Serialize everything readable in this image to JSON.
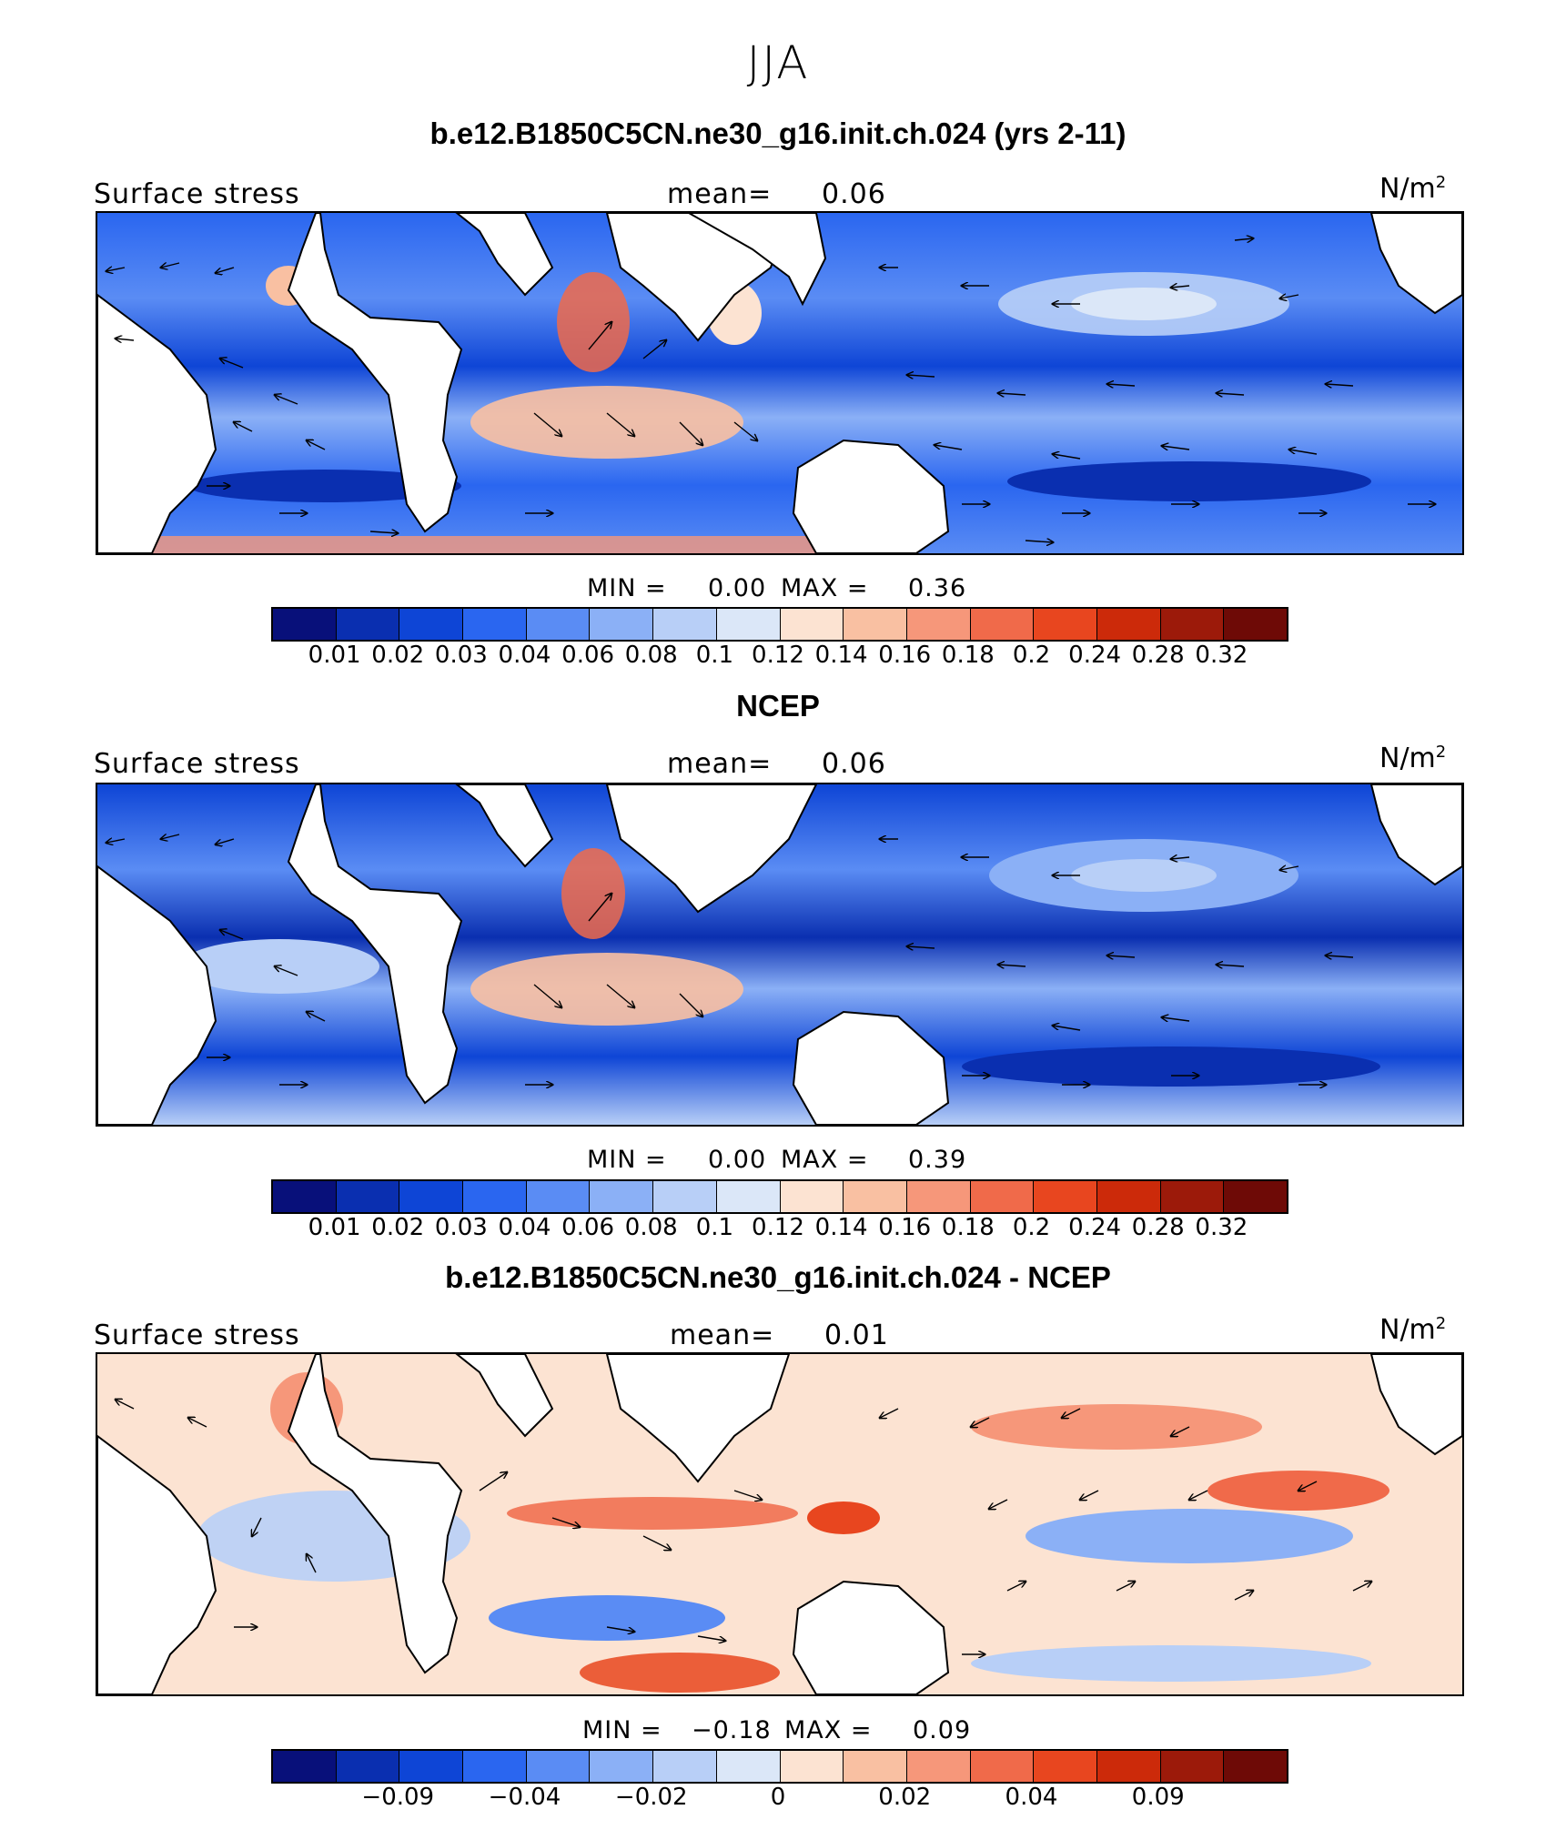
{
  "figure": {
    "season": "JJA",
    "palette": [
      "#08107a",
      "#0a2fb0",
      "#0e45d6",
      "#2a66f0",
      "#5a8cf4",
      "#8bb0f6",
      "#b8cff7",
      "#dbe7f8",
      "#fce3d2",
      "#f9c0a2",
      "#f6977a",
      "#f06a4a",
      "#e8461f",
      "#cc2a0a",
      "#9c1a0a",
      "#6e0a06"
    ]
  },
  "panels": [
    {
      "title": "b.e12.B1850C5CN.ne30_g16.init.ch.024 (yrs 2-11)",
      "variable": "Surface stress",
      "mean_label": "mean=",
      "mean_value": "0.06",
      "units": "N/m",
      "units_exp": "2",
      "min_label": "MIN =",
      "min_value": "0.00",
      "max_label": "MAX =",
      "max_value": "0.36",
      "colorbar_ticks": [
        "0.01",
        "0.02",
        "0.03",
        "0.04",
        "0.06",
        "0.08",
        "0.1",
        "0.12",
        "0.14",
        "0.16",
        "0.18",
        "0.2",
        "0.24",
        "0.28",
        "0.32"
      ]
    },
    {
      "title": "NCEP",
      "variable": "Surface stress",
      "mean_label": "mean=",
      "mean_value": "0.06",
      "units": "N/m",
      "units_exp": "2",
      "min_label": "MIN =",
      "min_value": "0.00",
      "max_label": "MAX =",
      "max_value": "0.39",
      "colorbar_ticks": [
        "0.01",
        "0.02",
        "0.03",
        "0.04",
        "0.06",
        "0.08",
        "0.1",
        "0.12",
        "0.14",
        "0.16",
        "0.18",
        "0.2",
        "0.24",
        "0.28",
        "0.32"
      ]
    },
    {
      "title": "b.e12.B1850C5CN.ne30_g16.init.ch.024 - NCEP",
      "variable": "Surface stress",
      "mean_label": "mean=",
      "mean_value": "0.01",
      "units": "N/m",
      "units_exp": "2",
      "min_label": "MIN =",
      "min_value": "−0.18",
      "max_label": "MAX =",
      "max_value": "0.09",
      "colorbar_ticks": [
        "−0.09",
        "−0.04",
        "−0.02",
        "0",
        "0.02",
        "0.04",
        "0.09"
      ]
    }
  ]
}
